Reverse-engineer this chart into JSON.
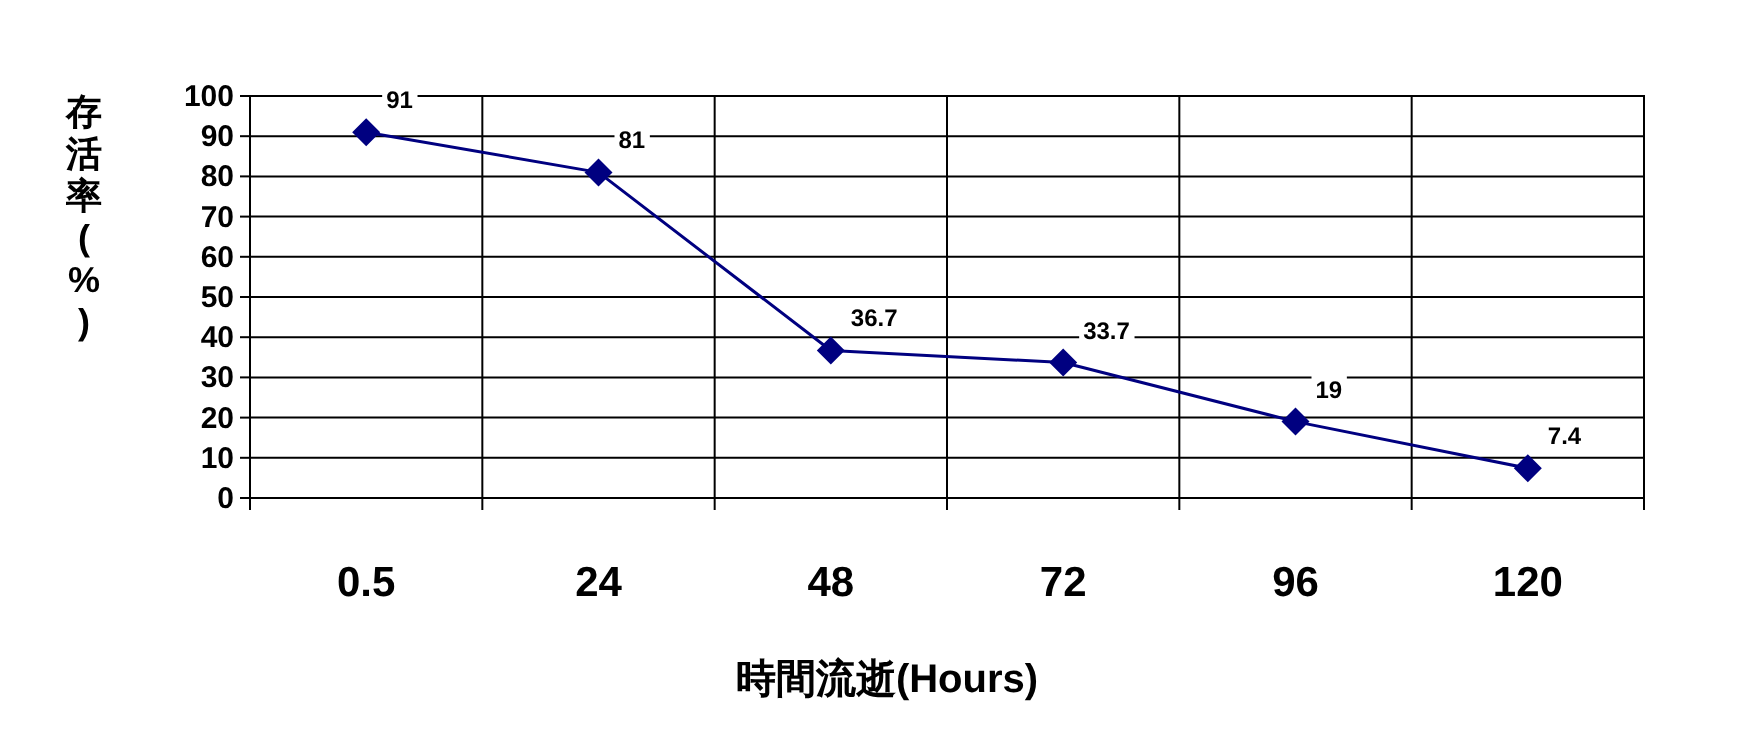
{
  "chart_data": {
    "type": "line",
    "xlabel": "時間流逝(Hours)",
    "ylabel": "存活率(%)",
    "categories": [
      "0.5",
      "24",
      "48",
      "72",
      "96",
      "120"
    ],
    "series": [
      {
        "color": "#000080",
        "values": [
          91,
          81,
          36.7,
          33.7,
          19,
          7.4
        ]
      }
    ],
    "ylim": [
      0,
      100
    ],
    "yticks": [
      0,
      10,
      20,
      30,
      40,
      50,
      60,
      70,
      80,
      90,
      100
    ],
    "grid": true,
    "marker": "diamond",
    "data_labels": true
  }
}
